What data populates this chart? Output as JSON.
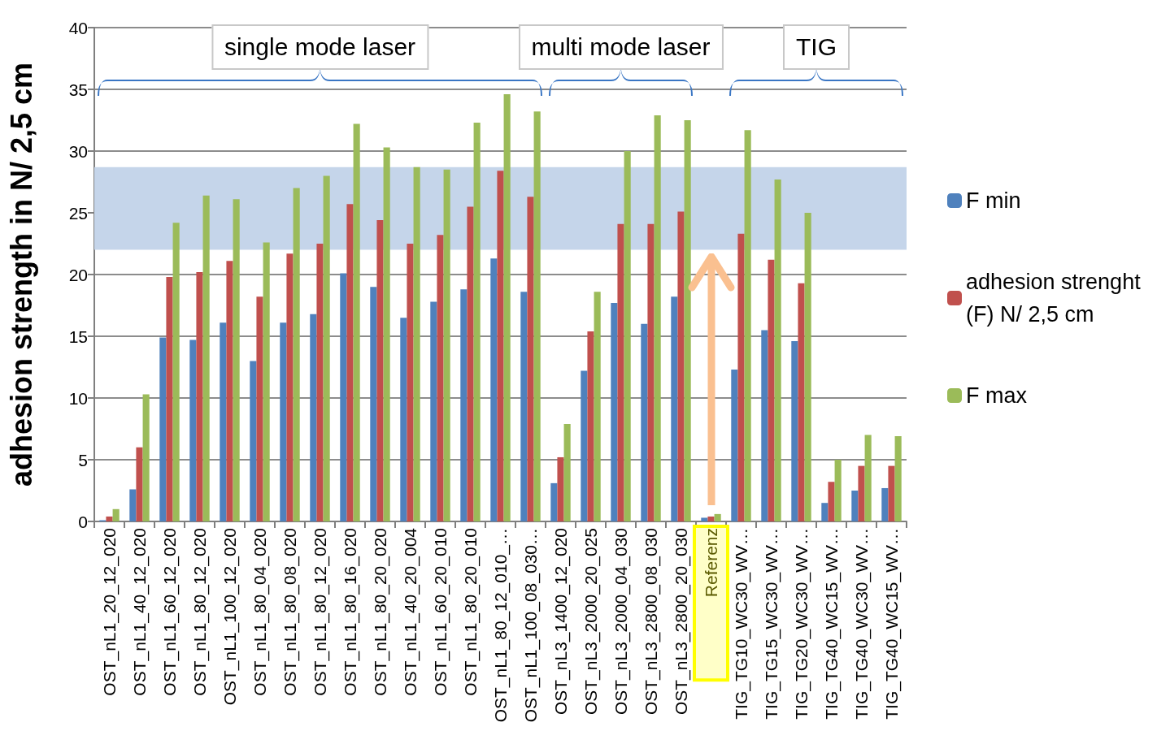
{
  "chart_data": {
    "type": "bar",
    "ylabel": "adhesion strength in N/ 2,5 cm",
    "categories": [
      "OST_nL1_20_12_020",
      "OST_nL1_40_12_020",
      "OST_nL1_60_12_020",
      "OST_nL1_80_12_020",
      "OST_nL1_100_12_020",
      "OST_nL1_80_04_020",
      "OST_nL1_80_08_020",
      "OST_nL1_80_12_020",
      "OST_nL1_80_16_020",
      "OST_nL1_80_20_020",
      "OST_nL1_40_20_004",
      "OST_nL1_60_20_010",
      "OST_nL1_80_20_010",
      "OST_nL1_80_12_010_…",
      "OST_nL1_100_08_030…",
      "OST_nL3_1400_12_020",
      "OST_nL3_2000_20_025",
      "OST_nL3_2000_04_030",
      "OST_nL3_2800_08_030",
      "OST_nL3_2800_20_030",
      "Referenz",
      "TIG_TG10_WC30_WV…",
      "TIG_TG15_WC30_WV…",
      "TIG_TG20_WC30_WV…",
      "TIG_TG40_WC15_WV…",
      "TIG_TG40_WC30_WV…",
      "TIG_TG40_WC15_WV…"
    ],
    "series": [
      {
        "name": "F min",
        "color": "#4f81bd",
        "values": [
          0.1,
          2.6,
          14.9,
          14.7,
          16.1,
          13.0,
          16.1,
          16.8,
          20.1,
          19.0,
          16.5,
          17.8,
          18.8,
          21.3,
          18.6,
          3.1,
          12.2,
          17.7,
          16.0,
          18.2,
          0.3,
          12.3,
          15.5,
          14.6,
          1.5,
          2.5,
          2.7
        ]
      },
      {
        "name": "adhesion strenght (F) N/ 2,5 cm",
        "color": "#c0504d",
        "values": [
          0.4,
          6.0,
          19.8,
          20.2,
          21.1,
          18.2,
          21.7,
          22.5,
          25.7,
          24.4,
          22.5,
          23.2,
          25.5,
          28.4,
          26.3,
          5.2,
          15.4,
          24.1,
          24.1,
          25.1,
          0.4,
          23.3,
          21.2,
          19.3,
          3.2,
          4.5,
          4.5
        ]
      },
      {
        "name": "F max",
        "color": "#9bbb59",
        "values": [
          1.0,
          10.3,
          24.2,
          26.4,
          26.1,
          22.6,
          27.0,
          28.0,
          32.2,
          30.3,
          28.7,
          28.5,
          32.3,
          34.6,
          33.2,
          7.9,
          18.6,
          30.0,
          32.9,
          32.5,
          0.6,
          31.7,
          27.7,
          25.0,
          5.0,
          7.0,
          6.9
        ]
      }
    ],
    "ylim": [
      0,
      40
    ],
    "yticks": [
      0,
      5,
      10,
      15,
      20,
      25,
      30,
      35,
      40
    ],
    "grid": "y",
    "legend": "right",
    "bands": [
      {
        "axis": "y",
        "from": 22,
        "to": 28.7,
        "color": "#c5d5ea"
      }
    ],
    "annotations": [
      "single mode laser",
      "multi mode laser",
      "TIG"
    ]
  }
}
